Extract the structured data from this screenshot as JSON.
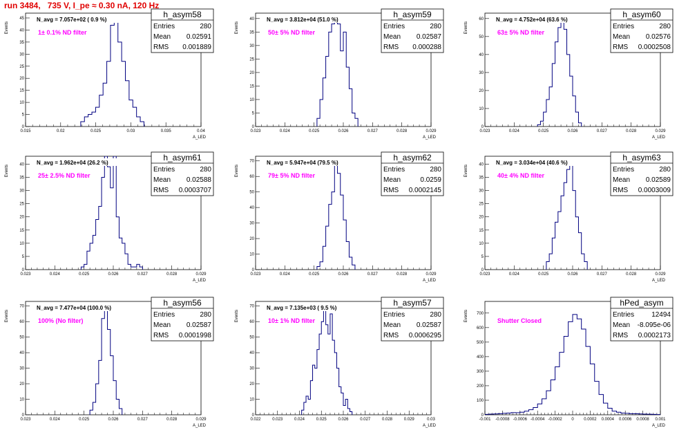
{
  "page": {
    "title": "run 3484,   735 V, I_pe ≈ 0.30 nA, 120 Hz"
  },
  "style": {
    "line_color": "#000080",
    "title_color": "#e00000",
    "annotation_color": "#ff00ff"
  },
  "stats_labels": {
    "entries": "Entries",
    "mean": "Mean",
    "rms": "RMS"
  },
  "ylabel": "Events",
  "xlabel": "A_LED",
  "chart_data": [
    {
      "type": "histogram",
      "title": "h_asym58",
      "stats": {
        "entries": "280",
        "mean": "0.02591",
        "rms": "0.001889"
      },
      "navg": "N_avg = 7.057e+02 ( 0.9 %)",
      "filter": "1± 0.1% ND filter",
      "xlim": [
        0.0117,
        0.04
      ],
      "ylim": [
        0,
        47
      ],
      "xticks": [
        "0.015",
        "0.02",
        "0.025",
        "0.03",
        "0.035",
        "0.04"
      ],
      "yticks": [
        0,
        5,
        10,
        15,
        20,
        25,
        30,
        35,
        40,
        45
      ],
      "bins": [
        [
          0.0206,
          0.0212,
          2
        ],
        [
          0.0212,
          0.0218,
          4
        ],
        [
          0.0218,
          0.0224,
          5
        ],
        [
          0.0224,
          0.023,
          6
        ],
        [
          0.023,
          0.0236,
          8
        ],
        [
          0.0236,
          0.0242,
          13
        ],
        [
          0.0242,
          0.0248,
          18
        ],
        [
          0.0248,
          0.0254,
          27
        ],
        [
          0.0254,
          0.026,
          42
        ],
        [
          0.026,
          0.0266,
          44
        ],
        [
          0.0266,
          0.0272,
          35
        ],
        [
          0.0272,
          0.0278,
          27
        ],
        [
          0.0278,
          0.0284,
          19
        ],
        [
          0.0284,
          0.029,
          11
        ],
        [
          0.029,
          0.0296,
          8
        ],
        [
          0.0296,
          0.0302,
          4
        ],
        [
          0.0302,
          0.0308,
          2
        ]
      ]
    },
    {
      "type": "histogram",
      "title": "h_asym59",
      "stats": {
        "entries": "280",
        "mean": "0.02587",
        "rms": "0.000288"
      },
      "navg": "N_avg = 3.812e+04 (51.0 %)",
      "filter": "50± 5% ND filter",
      "xlim": [
        0.023,
        0.029
      ],
      "ylim": [
        0,
        42
      ],
      "xticks": [
        "0.023",
        "0.024",
        "0.025",
        "0.026",
        "0.027",
        "0.028",
        "0.029"
      ],
      "yticks": [
        0,
        5,
        10,
        15,
        20,
        25,
        30,
        35,
        40
      ],
      "bins": [
        [
          0.0251,
          0.0252,
          3
        ],
        [
          0.0252,
          0.0253,
          10
        ],
        [
          0.0253,
          0.0254,
          18
        ],
        [
          0.0254,
          0.0255,
          26
        ],
        [
          0.0255,
          0.0256,
          35
        ],
        [
          0.0256,
          0.0257,
          38
        ],
        [
          0.0257,
          0.0258,
          40
        ],
        [
          0.0258,
          0.0259,
          38
        ],
        [
          0.0259,
          0.026,
          28
        ],
        [
          0.026,
          0.0261,
          35
        ],
        [
          0.0261,
          0.0262,
          22
        ],
        [
          0.0262,
          0.0263,
          14
        ],
        [
          0.0263,
          0.0264,
          5
        ],
        [
          0.0264,
          0.0265,
          3
        ]
      ]
    },
    {
      "type": "histogram",
      "title": "h_asym60",
      "stats": {
        "entries": "280",
        "mean": "0.02576",
        "rms": "0.0002508"
      },
      "navg": "N_avg = 4.752e+04 (63.6 %)",
      "filter": "63± 5% ND filter",
      "xlim": [
        0.023,
        0.029
      ],
      "ylim": [
        0,
        63
      ],
      "xticks": [
        "0.023",
        "0.024",
        "0.025",
        "0.026",
        "0.027",
        "0.028",
        "0.029"
      ],
      "yticks": [
        0,
        10,
        20,
        30,
        40,
        50,
        60
      ],
      "bins": [
        [
          0.0248,
          0.0249,
          1
        ],
        [
          0.0249,
          0.025,
          3
        ],
        [
          0.025,
          0.0251,
          8
        ],
        [
          0.0251,
          0.0252,
          15
        ],
        [
          0.0252,
          0.0253,
          22
        ],
        [
          0.0253,
          0.0254,
          35
        ],
        [
          0.0254,
          0.0255,
          47
        ],
        [
          0.0255,
          0.0256,
          55
        ],
        [
          0.0256,
          0.0257,
          60
        ],
        [
          0.0257,
          0.0258,
          54
        ],
        [
          0.0258,
          0.0259,
          40
        ],
        [
          0.0259,
          0.026,
          28
        ],
        [
          0.026,
          0.0261,
          17
        ],
        [
          0.0261,
          0.0262,
          8
        ],
        [
          0.0262,
          0.0263,
          2
        ]
      ]
    },
    {
      "type": "histogram",
      "title": "h_asym61",
      "stats": {
        "entries": "280",
        "mean": "0.02588",
        "rms": "0.0003707"
      },
      "navg": "N_avg = 1.962e+04 (26.2 %)",
      "filter": "25± 2.5% ND filter",
      "xlim": [
        0.023,
        0.029
      ],
      "ylim": [
        0,
        43
      ],
      "xticks": [
        "0.023",
        "0.024",
        "0.025",
        "0.026",
        "0.027",
        "0.028",
        "0.029"
      ],
      "yticks": [
        0,
        5,
        10,
        15,
        20,
        25,
        30,
        35,
        40
      ],
      "bins": [
        [
          0.0249,
          0.025,
          1
        ],
        [
          0.025,
          0.0251,
          2
        ],
        [
          0.0251,
          0.0252,
          7
        ],
        [
          0.0252,
          0.0253,
          10
        ],
        [
          0.0253,
          0.0254,
          13
        ],
        [
          0.0254,
          0.0255,
          19
        ],
        [
          0.0255,
          0.0256,
          24
        ],
        [
          0.0256,
          0.0257,
          35
        ],
        [
          0.0257,
          0.0258,
          43
        ],
        [
          0.0258,
          0.0259,
          39
        ],
        [
          0.0259,
          0.026,
          31
        ],
        [
          0.026,
          0.0261,
          43
        ],
        [
          0.0261,
          0.0262,
          20
        ],
        [
          0.0262,
          0.0263,
          12
        ],
        [
          0.0263,
          0.0264,
          10
        ],
        [
          0.0264,
          0.0265,
          6
        ],
        [
          0.0265,
          0.0266,
          2
        ],
        [
          0.0266,
          0.0267,
          1
        ],
        [
          0.0267,
          0.0268,
          1
        ],
        [
          0.0268,
          0.0269,
          2
        ],
        [
          0.0269,
          0.027,
          1
        ]
      ]
    },
    {
      "type": "histogram",
      "title": "h_asym62",
      "stats": {
        "entries": "280",
        "mean": "0.0259",
        "rms": "0.0002145"
      },
      "navg": "N_avg = 5.947e+04 (79.5 %)",
      "filter": "79± 5% ND filter",
      "xlim": [
        0.023,
        0.029
      ],
      "ylim": [
        0,
        73
      ],
      "xticks": [
        "0.023",
        "0.024",
        "0.025",
        "0.026",
        "0.027",
        "0.028",
        "0.029"
      ],
      "yticks": [
        0,
        10,
        20,
        30,
        40,
        50,
        60,
        70
      ],
      "bins": [
        [
          0.0251,
          0.0252,
          2
        ],
        [
          0.0252,
          0.0253,
          5
        ],
        [
          0.0253,
          0.0254,
          15
        ],
        [
          0.0254,
          0.0255,
          28
        ],
        [
          0.0255,
          0.0256,
          42
        ],
        [
          0.0256,
          0.0257,
          50
        ],
        [
          0.0257,
          0.0258,
          70
        ],
        [
          0.0258,
          0.0259,
          62
        ],
        [
          0.0259,
          0.026,
          48
        ],
        [
          0.026,
          0.0261,
          32
        ],
        [
          0.0261,
          0.0262,
          18
        ],
        [
          0.0262,
          0.0263,
          8
        ],
        [
          0.0263,
          0.0264,
          3
        ]
      ]
    },
    {
      "type": "histogram",
      "title": "h_asym63",
      "stats": {
        "entries": "280",
        "mean": "0.02589",
        "rms": "0.0003009"
      },
      "navg": "N_avg = 3.034e+04 (40.6 %)",
      "filter": "40± 4% ND filter",
      "xlim": [
        0.023,
        0.029
      ],
      "ylim": [
        0,
        43
      ],
      "xticks": [
        "0.023",
        "0.024",
        "0.025",
        "0.026",
        "0.027",
        "0.028",
        "0.029"
      ],
      "yticks": [
        0,
        5,
        10,
        15,
        20,
        25,
        30,
        35,
        40
      ],
      "bins": [
        [
          0.0251,
          0.0252,
          3
        ],
        [
          0.0252,
          0.0253,
          6
        ],
        [
          0.0253,
          0.0254,
          12
        ],
        [
          0.0254,
          0.0255,
          18
        ],
        [
          0.0255,
          0.0256,
          22
        ],
        [
          0.0256,
          0.0257,
          28
        ],
        [
          0.0257,
          0.0258,
          33
        ],
        [
          0.0258,
          0.0259,
          38
        ],
        [
          0.0259,
          0.026,
          40
        ],
        [
          0.026,
          0.0261,
          30
        ],
        [
          0.0261,
          0.0262,
          20
        ],
        [
          0.0262,
          0.0263,
          14
        ],
        [
          0.0263,
          0.0264,
          6
        ],
        [
          0.0264,
          0.0265,
          3
        ]
      ]
    },
    {
      "type": "histogram",
      "title": "h_asym56",
      "stats": {
        "entries": "280",
        "mean": "0.02587",
        "rms": "0.0001998"
      },
      "navg": "N_avg = 7.477e+04 (100.0 %)",
      "filter": "100% (No filter)",
      "xlim": [
        0.023,
        0.029
      ],
      "ylim": [
        0,
        73
      ],
      "xticks": [
        "0.023",
        "0.024",
        "0.025",
        "0.026",
        "0.027",
        "0.028",
        "0.029"
      ],
      "yticks": [
        0,
        10,
        20,
        30,
        40,
        50,
        60,
        70
      ],
      "bins": [
        [
          0.0252,
          0.0253,
          3
        ],
        [
          0.0253,
          0.0254,
          8
        ],
        [
          0.0254,
          0.0255,
          20
        ],
        [
          0.0255,
          0.0256,
          35
        ],
        [
          0.0256,
          0.0257,
          62
        ],
        [
          0.0257,
          0.0258,
          70
        ],
        [
          0.0258,
          0.0259,
          55
        ],
        [
          0.0259,
          0.026,
          38
        ],
        [
          0.026,
          0.0261,
          22
        ],
        [
          0.0261,
          0.0262,
          10
        ],
        [
          0.0262,
          0.0263,
          4
        ]
      ]
    },
    {
      "type": "histogram",
      "title": "h_asym57",
      "stats": {
        "entries": "280",
        "mean": "0.02587",
        "rms": "0.0006295"
      },
      "navg": "N_avg = 7.135e+03 ( 9.5 %)",
      "filter": "10± 1% ND filter",
      "xlim": [
        0.022,
        0.03
      ],
      "ylim": [
        0,
        73
      ],
      "xticks": [
        "0.022",
        "0.023",
        "0.024",
        "0.025",
        "0.026",
        "0.027",
        "0.028",
        "0.029",
        "0.03"
      ],
      "yticks": [
        0,
        10,
        20,
        30,
        40,
        50,
        60,
        70
      ],
      "bins": [
        [
          0.0241,
          0.0242,
          3
        ],
        [
          0.0242,
          0.0243,
          8
        ],
        [
          0.0243,
          0.0244,
          12
        ],
        [
          0.0244,
          0.0245,
          10
        ],
        [
          0.0245,
          0.0246,
          22
        ],
        [
          0.0246,
          0.0247,
          32
        ],
        [
          0.0247,
          0.0248,
          30
        ],
        [
          0.0248,
          0.0249,
          42
        ],
        [
          0.0249,
          0.025,
          52
        ],
        [
          0.025,
          0.0251,
          60
        ],
        [
          0.0251,
          0.0252,
          70
        ],
        [
          0.0252,
          0.0253,
          58
        ],
        [
          0.0253,
          0.0254,
          52
        ],
        [
          0.0254,
          0.0255,
          65
        ],
        [
          0.0255,
          0.0256,
          48
        ],
        [
          0.0256,
          0.0257,
          40
        ],
        [
          0.0257,
          0.0258,
          30
        ],
        [
          0.0258,
          0.0259,
          18
        ],
        [
          0.0259,
          0.026,
          14
        ],
        [
          0.026,
          0.0261,
          6
        ],
        [
          0.0261,
          0.0262,
          10
        ],
        [
          0.0262,
          0.0263,
          4
        ],
        [
          0.0263,
          0.0264,
          2
        ]
      ]
    },
    {
      "type": "histogram",
      "title": "hPed_asym",
      "stats": {
        "entries": "12494",
        "mean": "-8.095e-06",
        "rms": "0.0002173"
      },
      "navg": "",
      "filter": "Shutter Closed",
      "xlim": [
        -0.001,
        0.001
      ],
      "ylim": [
        0,
        780
      ],
      "xticks": [
        "-0.001",
        "-0.0008",
        "-0.0006",
        "-0.0004",
        "-0.0002",
        "0",
        "0.0002",
        "0.0004",
        "0.0006",
        "0.0008",
        "0.001"
      ],
      "yticks": [
        0,
        100,
        200,
        300,
        400,
        500,
        600,
        700
      ],
      "bins": [
        [
          -0.001,
          -0.00095,
          3
        ],
        [
          -0.00095,
          -0.0009,
          5
        ],
        [
          -0.0009,
          -0.00085,
          6
        ],
        [
          -0.00085,
          -0.0008,
          8
        ],
        [
          -0.0008,
          -0.00075,
          10
        ],
        [
          -0.00075,
          -0.0007,
          12
        ],
        [
          -0.0007,
          -0.00065,
          15
        ],
        [
          -0.00065,
          -0.0006,
          14
        ],
        [
          -0.0006,
          -0.00055,
          18
        ],
        [
          -0.00055,
          -0.0005,
          25
        ],
        [
          -0.0005,
          -0.00045,
          35
        ],
        [
          -0.00045,
          -0.0004,
          50
        ],
        [
          -0.0004,
          -0.00035,
          75
        ],
        [
          -0.00035,
          -0.0003,
          110
        ],
        [
          -0.0003,
          -0.00025,
          165
        ],
        [
          -0.00025,
          -0.0002,
          240
        ],
        [
          -0.0002,
          -0.00015,
          330
        ],
        [
          -0.00015,
          -0.0001,
          430
        ],
        [
          -0.0001,
          -5e-05,
          540
        ],
        [
          -5e-05,
          0,
          640
        ],
        [
          0,
          5e-05,
          690
        ],
        [
          5e-05,
          0.0001,
          660
        ],
        [
          0.0001,
          0.00015,
          590
        ],
        [
          0.00015,
          0.0002,
          470
        ],
        [
          0.0002,
          0.00025,
          350
        ],
        [
          0.00025,
          0.0003,
          230
        ],
        [
          0.0003,
          0.00035,
          140
        ],
        [
          0.00035,
          0.0004,
          80
        ],
        [
          0.0004,
          0.00045,
          45
        ],
        [
          0.00045,
          0.0005,
          25
        ],
        [
          0.0005,
          0.00055,
          18
        ],
        [
          0.00055,
          0.0006,
          12
        ],
        [
          0.0006,
          0.00065,
          10
        ],
        [
          0.00065,
          0.0007,
          8
        ],
        [
          0.0007,
          0.00075,
          7
        ],
        [
          0.00075,
          0.0008,
          6
        ],
        [
          0.0008,
          0.00085,
          5
        ],
        [
          0.00085,
          0.0009,
          4
        ],
        [
          0.0009,
          0.00095,
          3
        ],
        [
          0.00095,
          0.001,
          2
        ]
      ]
    }
  ]
}
